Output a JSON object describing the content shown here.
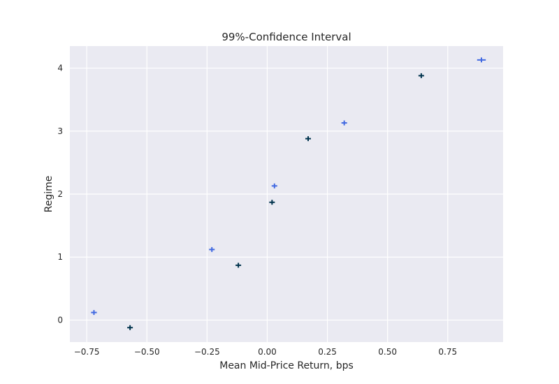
{
  "chart_data": {
    "type": "scatter",
    "title": "99%-Confidence Interval",
    "xlabel": "Mean Mid-Price Return, bps",
    "ylabel": "Regime",
    "xlim": [
      -0.82,
      0.98
    ],
    "ylim": [
      -0.35,
      4.35
    ],
    "xticks": [
      -0.75,
      -0.5,
      -0.25,
      0.0,
      0.25,
      0.5,
      0.75
    ],
    "xtick_labels": [
      "−0.75",
      "−0.50",
      "−0.25",
      "0.00",
      "0.25",
      "0.50",
      "0.75"
    ],
    "yticks": [
      0,
      1,
      2,
      3,
      4
    ],
    "ytick_labels": [
      "0",
      "1",
      "2",
      "3",
      "4"
    ],
    "grid": true,
    "series": [
      {
        "color": "#4169e1",
        "points": [
          {
            "x": -0.72,
            "y": 0.12,
            "xerr": 0.012,
            "yerr": 0.03
          },
          {
            "x": -0.23,
            "y": 1.12,
            "xerr": 0.01,
            "yerr": 0.03
          },
          {
            "x": 0.03,
            "y": 2.13,
            "xerr": 0.009,
            "yerr": 0.03
          },
          {
            "x": 0.32,
            "y": 3.13,
            "xerr": 0.009,
            "yerr": 0.03
          },
          {
            "x": 0.89,
            "y": 4.13,
            "xerr": 0.018,
            "yerr": 0.03
          }
        ]
      },
      {
        "color": "#00334d",
        "points": [
          {
            "x": -0.57,
            "y": -0.12,
            "xerr": 0.007,
            "yerr": 0.03
          },
          {
            "x": -0.12,
            "y": 0.87,
            "xerr": 0.01,
            "yerr": 0.03
          },
          {
            "x": 0.02,
            "y": 1.87,
            "xerr": 0.011,
            "yerr": 0.03
          },
          {
            "x": 0.17,
            "y": 2.88,
            "xerr": 0.011,
            "yerr": 0.03
          },
          {
            "x": 0.64,
            "y": 3.88,
            "xerr": 0.009,
            "yerr": 0.03
          }
        ]
      }
    ]
  }
}
